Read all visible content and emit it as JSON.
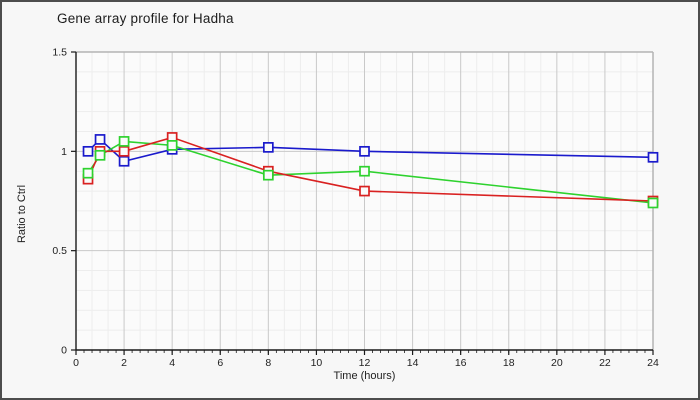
{
  "window": {
    "background_color": "#f7f7f7",
    "border_color": "#4d4d4d"
  },
  "chart_data": {
    "type": "line",
    "title": "Gene array profile for Hadha",
    "xlabel": "Time (hours)",
    "ylabel": "Ratio to Ctrl",
    "xlim": [
      0,
      24
    ],
    "ylim": [
      0,
      1.5
    ],
    "grid": "major and minor gridlines on, no legend",
    "x": [
      0.5,
      1,
      2,
      4,
      8,
      12,
      24
    ],
    "series": [
      {
        "name": "series-blue",
        "color": "#1a1acc",
        "marker": "open-square",
        "values": [
          1.0,
          1.06,
          0.95,
          1.01,
          1.02,
          1.0,
          0.97
        ]
      },
      {
        "name": "series-green",
        "color": "#2ed22e",
        "marker": "open-square",
        "values": [
          0.89,
          0.98,
          1.05,
          1.03,
          0.88,
          0.9,
          0.74
        ]
      },
      {
        "name": "series-red",
        "color": "#d92121",
        "marker": "open-square",
        "values": [
          0.86,
          1.0,
          1.0,
          1.07,
          0.9,
          0.8,
          0.75
        ]
      }
    ],
    "x_major_ticks": [
      0,
      2,
      4,
      6,
      8,
      10,
      12,
      14,
      16,
      18,
      20,
      22,
      24
    ],
    "x_tick_labels": [
      "0",
      "2",
      "4",
      "6",
      "8",
      "10",
      "12",
      "14",
      "16",
      "18",
      "20",
      "22",
      "24"
    ],
    "x_minor_step_hours": 0.3333333,
    "y_ticks": [
      {
        "value": 0,
        "label": "0"
      },
      {
        "value": 0.5,
        "label": "0.5"
      },
      {
        "value": 1,
        "label": "1"
      },
      {
        "value": 1.5,
        "label": "1.5"
      }
    ],
    "y_minor_step": 0.1,
    "colors": {
      "plot_background": "#fbfbfb",
      "major_grid": "#c9c9c9",
      "minor_grid": "#ededed",
      "frame": "#b4b4b4",
      "axis": "#1a1a1a",
      "tick_label": "#222222"
    }
  }
}
